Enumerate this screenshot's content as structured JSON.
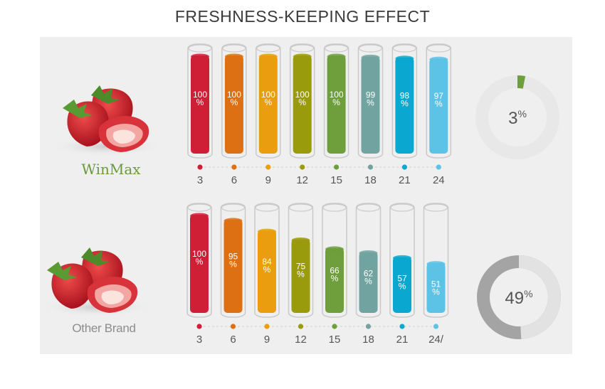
{
  "title": "FRESHNESS-KEEPING EFFECT",
  "chart_data": [
    {
      "type": "bar",
      "name": "WinMax",
      "brand_label": "WinMax",
      "categories": [
        "3",
        "6",
        "9",
        "12",
        "15",
        "18",
        "21",
        "24"
      ],
      "values": [
        100,
        100,
        100,
        100,
        100,
        99,
        98,
        97
      ],
      "value_labels": [
        "100 %",
        "100 %",
        "100 %",
        "100 %",
        "100 %",
        "99 %",
        "98 %",
        "97 %"
      ],
      "colors": [
        "#cf1f37",
        "#dc7013",
        "#e99d0f",
        "#9a9a0d",
        "#6f9e3c",
        "#71a3a1",
        "#0aa8d0",
        "#5cc2e6"
      ],
      "ylim": [
        0,
        100
      ],
      "donut": {
        "value": 3,
        "number": "3",
        "unit": "%",
        "fill_color": "#6f9e3c",
        "rest_color": "#e8e8e8"
      }
    },
    {
      "type": "bar",
      "name": "Other Brand",
      "brand_label": "Other Brand",
      "categories": [
        "3",
        "6",
        "9",
        "12",
        "15",
        "18",
        "21",
        "24/"
      ],
      "values": [
        100,
        95,
        84,
        75,
        66,
        62,
        57,
        51
      ],
      "value_labels": [
        "100 %",
        "95 %",
        "84 %",
        "75 %",
        "66 %",
        "62 %",
        "57 %",
        "51 %"
      ],
      "colors": [
        "#cf1f37",
        "#dc7013",
        "#e99d0f",
        "#9a9a0d",
        "#6f9e3c",
        "#71a3a1",
        "#0aa8d0",
        "#5cc2e6"
      ],
      "ylim": [
        0,
        100
      ],
      "donut": {
        "value": 49,
        "number": "49",
        "unit": "%",
        "fill_color": "#e2e2e2",
        "rest_color": "#a4a4a4"
      }
    }
  ]
}
